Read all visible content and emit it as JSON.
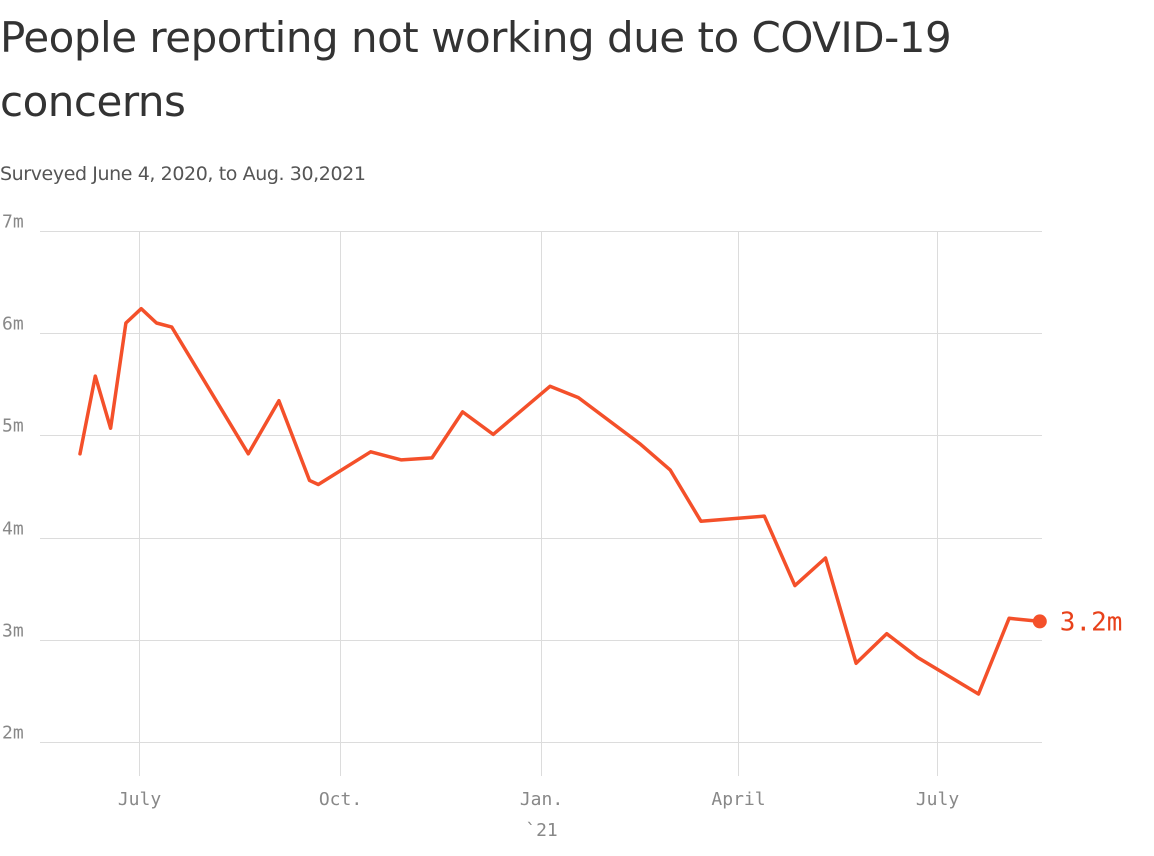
{
  "chart_data": {
    "type": "line",
    "title": "People reporting not working due to COVID-19 concerns",
    "subtitle": "Surveyed June 4, 2020, to Aug. 30,2021",
    "xlabel": "",
    "ylabel": "",
    "unit": "m",
    "ylim": [
      2,
      7
    ],
    "y_ticks": [
      {
        "value": 2,
        "label": "2m"
      },
      {
        "value": 3,
        "label": "3m"
      },
      {
        "value": 4,
        "label": "4m"
      },
      {
        "value": 5,
        "label": "5m"
      },
      {
        "value": 6,
        "label": "6m"
      },
      {
        "value": 7,
        "label": "7m"
      }
    ],
    "xlim": [
      "2020-06-04",
      "2021-08-30"
    ],
    "x_ticks": [
      {
        "value": "2020-07-01",
        "label": "July",
        "sublabel": ""
      },
      {
        "value": "2020-10-01",
        "label": "Oct.",
        "sublabel": ""
      },
      {
        "value": "2021-01-01",
        "label": "Jan.",
        "sublabel": "`21"
      },
      {
        "value": "2021-04-01",
        "label": "April",
        "sublabel": ""
      },
      {
        "value": "2021-07-01",
        "label": "July",
        "sublabel": ""
      }
    ],
    "grid": true,
    "line_color": "#f4502a",
    "end_label": "3.2m",
    "end_label_color": "#e8411a",
    "series": [
      {
        "name": "",
        "points": [
          {
            "x": "2020-06-04",
            "y": 4.82
          },
          {
            "x": "2020-06-11",
            "y": 5.58
          },
          {
            "x": "2020-06-18",
            "y": 5.07
          },
          {
            "x": "2020-06-25",
            "y": 6.1
          },
          {
            "x": "2020-07-02",
            "y": 6.24
          },
          {
            "x": "2020-07-09",
            "y": 6.1
          },
          {
            "x": "2020-07-16",
            "y": 6.06
          },
          {
            "x": "2020-08-20",
            "y": 4.82
          },
          {
            "x": "2020-09-03",
            "y": 5.34
          },
          {
            "x": "2020-09-17",
            "y": 4.56
          },
          {
            "x": "2020-09-21",
            "y": 4.52
          },
          {
            "x": "2020-10-15",
            "y": 4.84
          },
          {
            "x": "2020-10-29",
            "y": 4.76
          },
          {
            "x": "2020-11-12",
            "y": 4.78
          },
          {
            "x": "2020-11-26",
            "y": 5.23
          },
          {
            "x": "2020-12-10",
            "y": 5.01
          },
          {
            "x": "2021-01-05",
            "y": 5.48
          },
          {
            "x": "2021-01-18",
            "y": 5.37
          },
          {
            "x": "2021-02-15",
            "y": 4.92
          },
          {
            "x": "2021-03-01",
            "y": 4.66
          },
          {
            "x": "2021-03-15",
            "y": 4.16
          },
          {
            "x": "2021-04-13",
            "y": 4.21
          },
          {
            "x": "2021-04-27",
            "y": 3.53
          },
          {
            "x": "2021-05-11",
            "y": 3.8
          },
          {
            "x": "2021-05-25",
            "y": 2.77
          },
          {
            "x": "2021-06-08",
            "y": 3.06
          },
          {
            "x": "2021-06-22",
            "y": 2.83
          },
          {
            "x": "2021-07-20",
            "y": 2.47
          },
          {
            "x": "2021-08-03",
            "y": 3.21
          },
          {
            "x": "2021-08-17",
            "y": 3.18
          }
        ]
      }
    ]
  }
}
